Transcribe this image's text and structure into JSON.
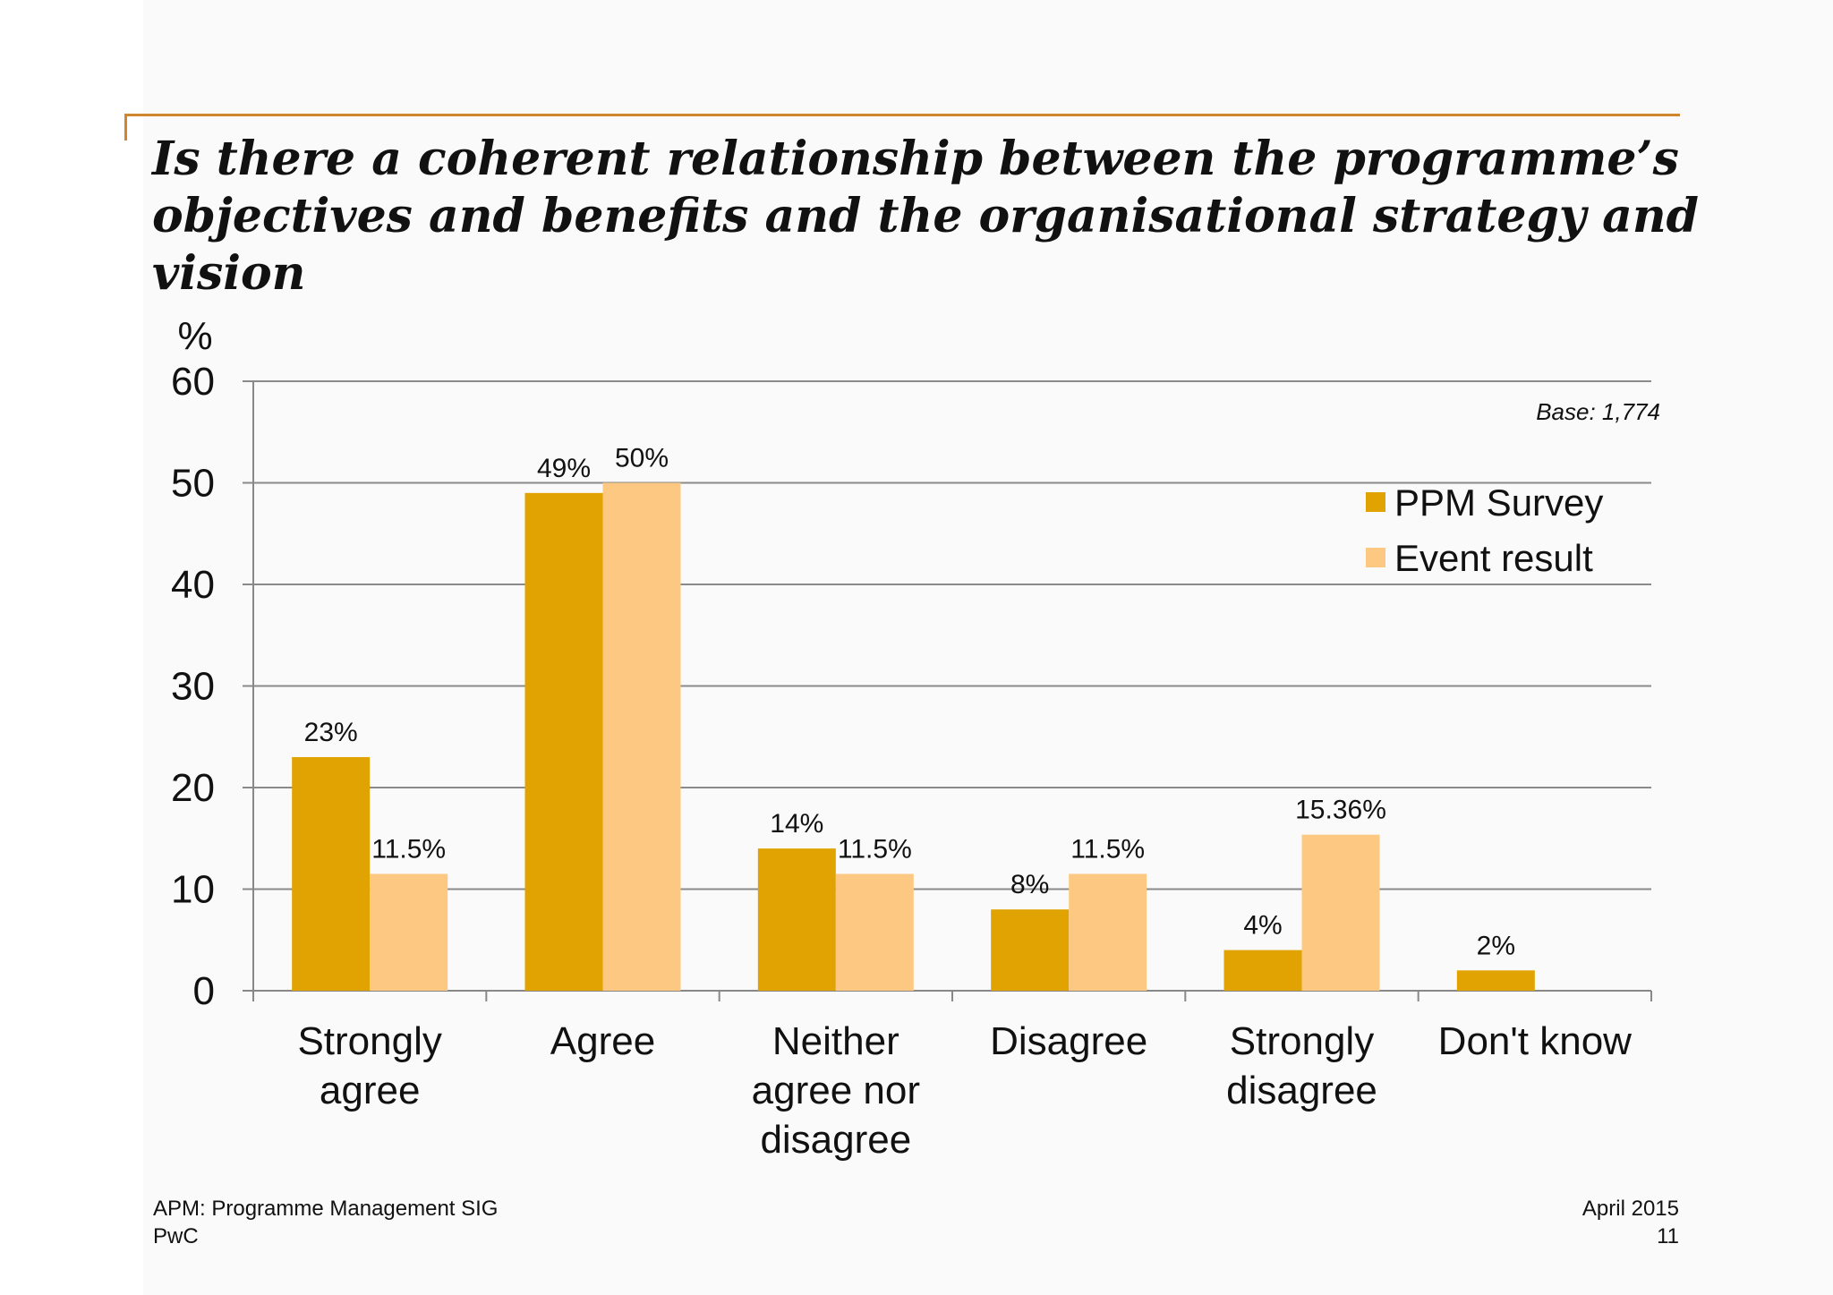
{
  "slide": {
    "title_lines": [
      "Is there a coherent relationship between the programme’s",
      "objectives and benefits and the organisational strategy  and",
      "vision"
    ],
    "footer_left": [
      "APM: Programme Management SIG",
      "PwC"
    ],
    "footer_right": [
      "April 2015",
      "11"
    ],
    "accent_color": "#d0862a"
  },
  "chart_data": {
    "type": "bar",
    "ylabel": "%",
    "ylim": [
      0,
      60
    ],
    "yticks": [
      0,
      10,
      20,
      30,
      40,
      50,
      60
    ],
    "grid": true,
    "legend_position": "top-right",
    "note": "Base: 1,774",
    "categories": [
      [
        "Strongly",
        "agree"
      ],
      [
        "Agree"
      ],
      [
        "Neither",
        "agree nor",
        "disagree"
      ],
      [
        "Disagree"
      ],
      [
        "Strongly",
        "disagree"
      ],
      [
        "Don't know"
      ]
    ],
    "series": [
      {
        "name": "PPM Survey",
        "color": "#e0a302",
        "values": [
          23,
          49,
          14,
          8,
          4,
          2
        ],
        "labels": [
          "23%",
          "49%",
          "14%",
          "8%",
          "4%",
          "2%"
        ]
      },
      {
        "name": "Event result",
        "color": "#fdc982",
        "values": [
          11.5,
          50,
          11.5,
          11.5,
          15.36,
          null
        ],
        "labels": [
          "11.5%",
          "50%",
          "11.5%",
          "11.5%",
          "15.36%",
          null
        ]
      }
    ]
  }
}
